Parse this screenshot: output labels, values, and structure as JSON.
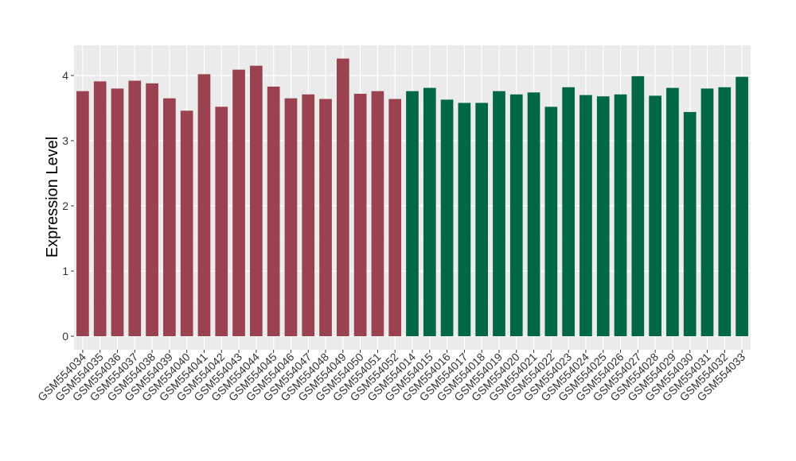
{
  "chart_data": {
    "type": "bar",
    "title": "",
    "xlabel": "",
    "ylabel": "Expression Level",
    "ylim": [
      0,
      4.45
    ],
    "yticks": [
      0,
      1,
      2,
      3,
      4
    ],
    "grid": true,
    "background": "#ebebeb",
    "colors": {
      "group_1": "#9a4250",
      "group_2": "#006747"
    },
    "categories": [
      "GSM554034",
      "GSM554035",
      "GSM554036",
      "GSM554037",
      "GSM554038",
      "GSM554039",
      "GSM554040",
      "GSM554041",
      "GSM554042",
      "GSM554043",
      "GSM554044",
      "GSM554045",
      "GSM554046",
      "GSM554047",
      "GSM554048",
      "GSM554049",
      "GSM554050",
      "GSM554051",
      "GSM554052",
      "GSM554014",
      "GSM554015",
      "GSM554016",
      "GSM554017",
      "GSM554018",
      "GSM554019",
      "GSM554020",
      "GSM554021",
      "GSM554022",
      "GSM554023",
      "GSM554024",
      "GSM554025",
      "GSM554026",
      "GSM554027",
      "GSM554028",
      "GSM554029",
      "GSM554030",
      "GSM554031",
      "GSM554032",
      "GSM554033"
    ],
    "values": [
      3.76,
      3.91,
      3.8,
      3.92,
      3.88,
      3.65,
      3.46,
      4.02,
      3.52,
      4.09,
      4.15,
      3.83,
      3.65,
      3.71,
      3.64,
      4.26,
      3.72,
      3.76,
      3.64,
      3.76,
      3.81,
      3.63,
      3.58,
      3.58,
      3.76,
      3.71,
      3.74,
      3.52,
      3.82,
      3.7,
      3.68,
      3.71,
      3.99,
      3.69,
      3.81,
      3.44,
      3.8,
      3.82,
      3.98
    ],
    "groups": [
      1,
      1,
      1,
      1,
      1,
      1,
      1,
      1,
      1,
      1,
      1,
      1,
      1,
      1,
      1,
      1,
      1,
      1,
      1,
      2,
      2,
      2,
      2,
      2,
      2,
      2,
      2,
      2,
      2,
      2,
      2,
      2,
      2,
      2,
      2,
      2,
      2,
      2,
      2
    ]
  }
}
